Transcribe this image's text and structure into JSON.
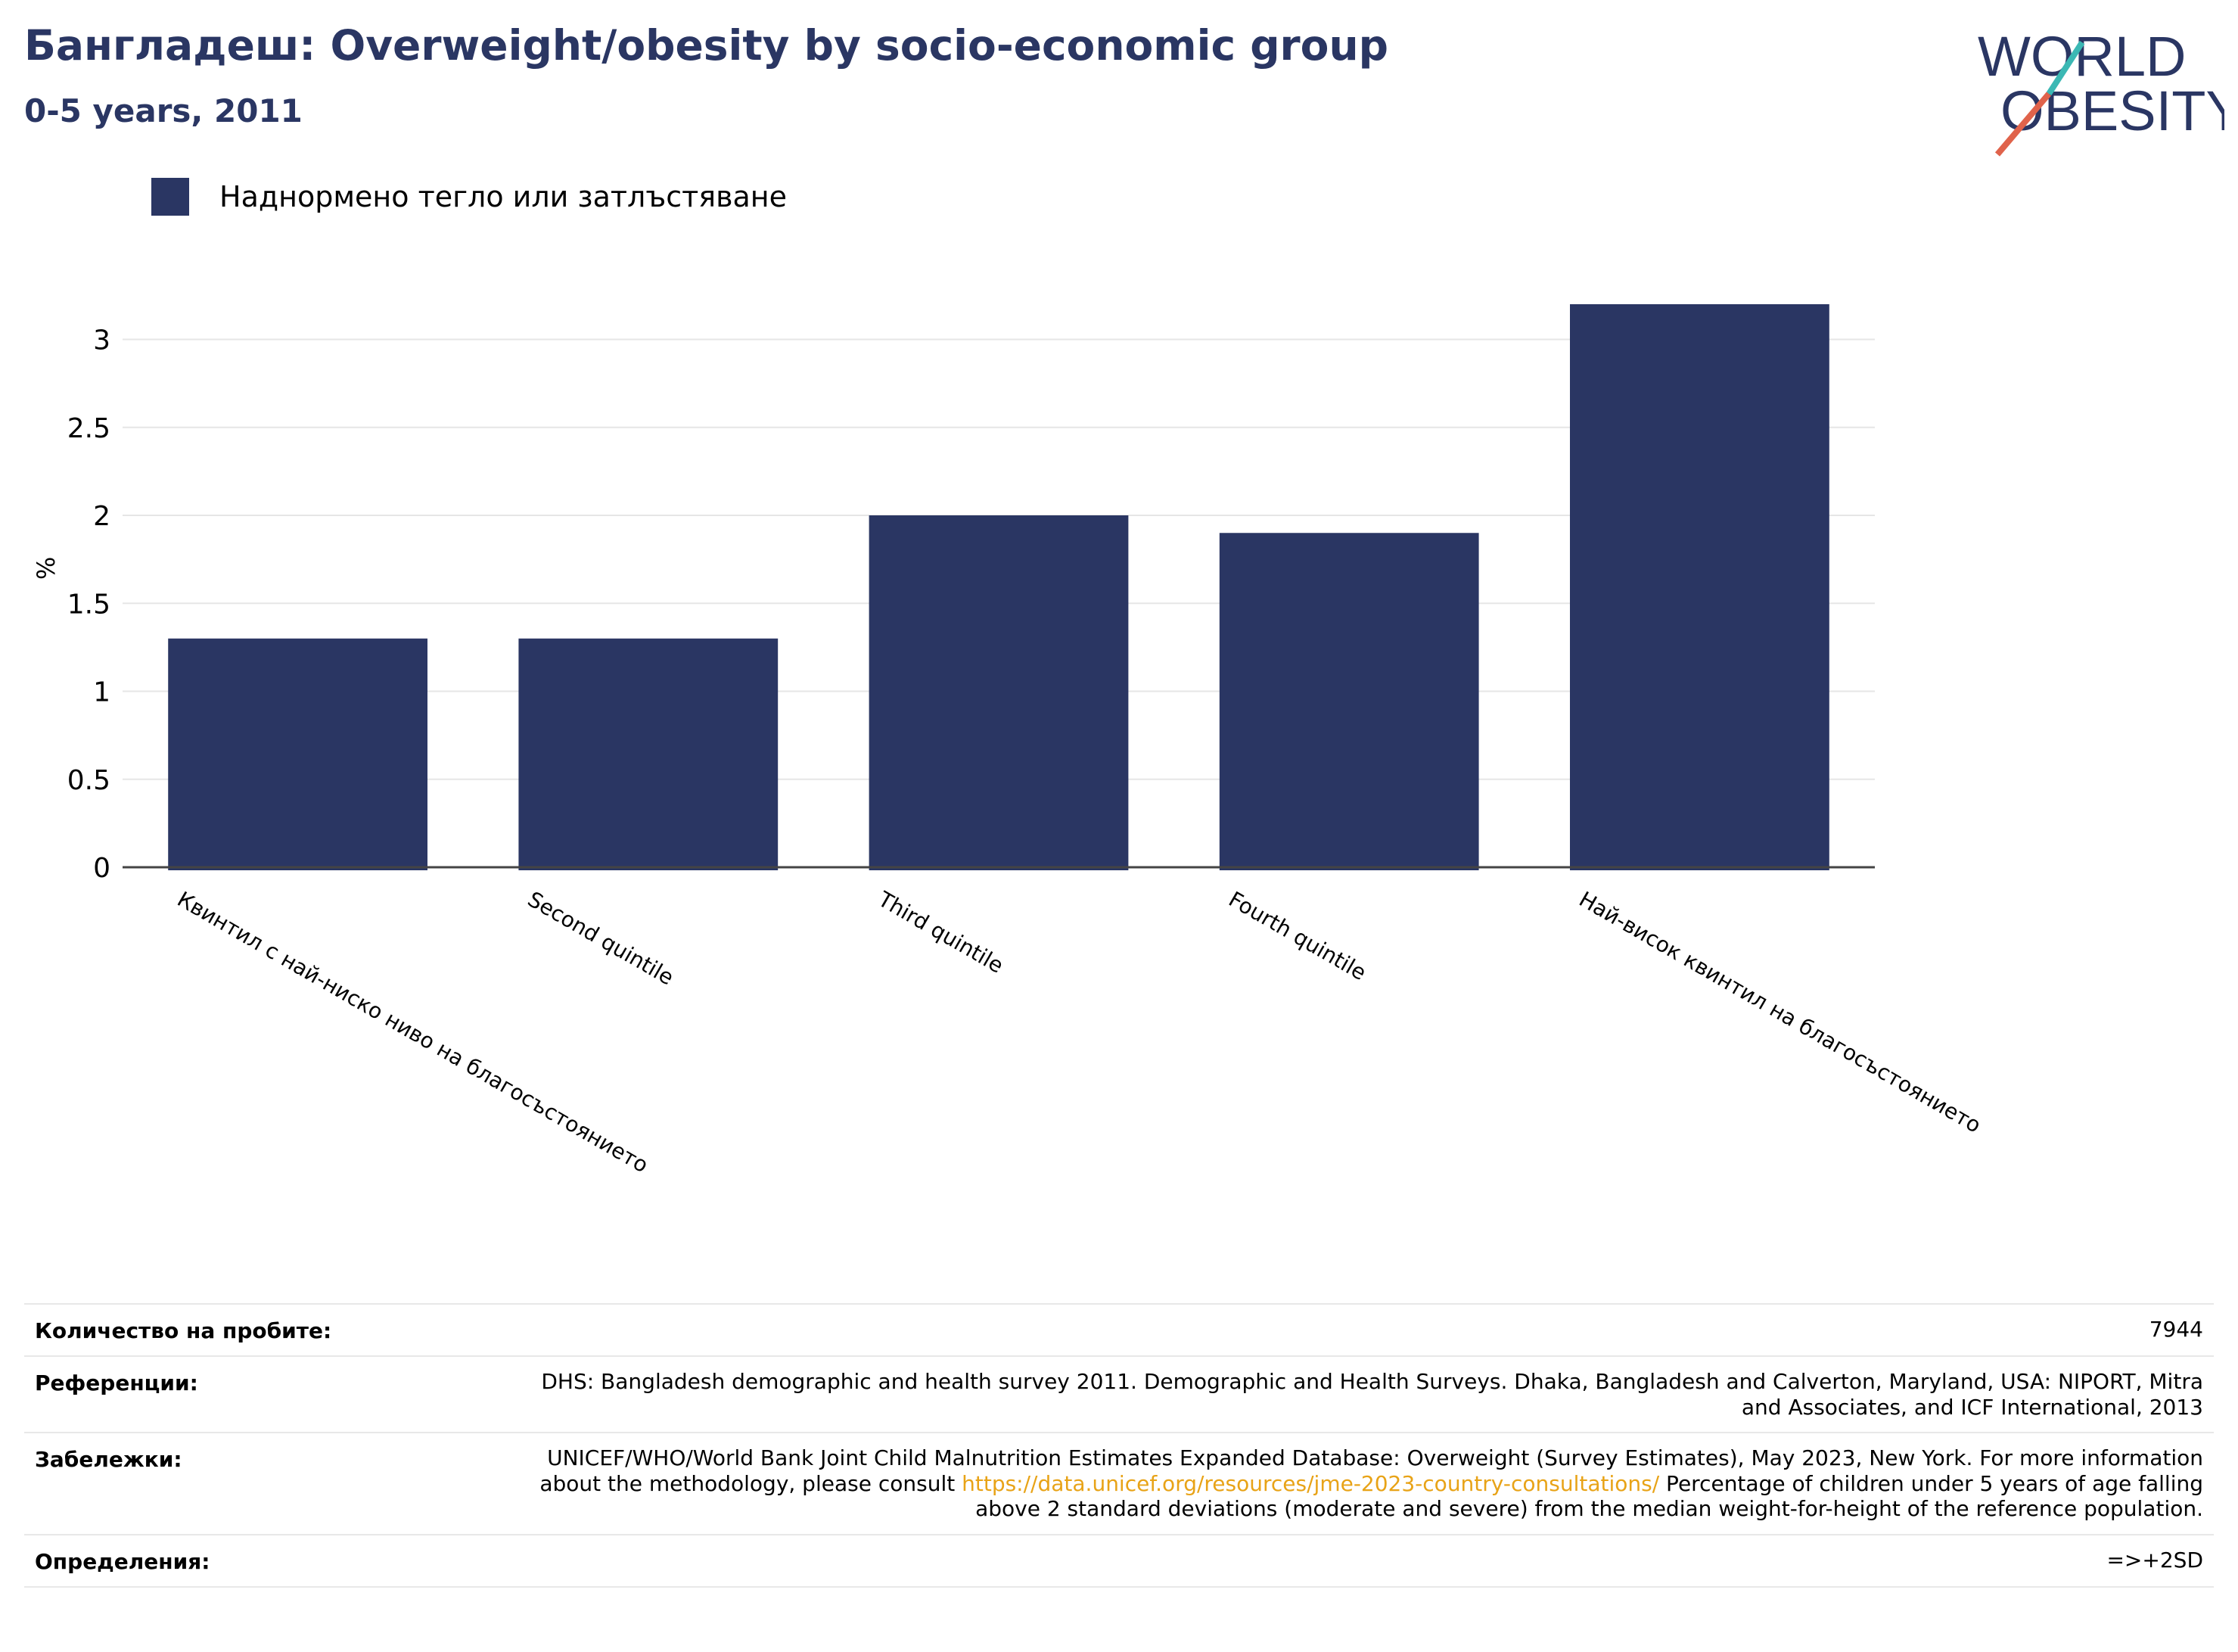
{
  "header": {
    "title": "Бангладеш: Overweight/obesity by socio-economic group",
    "subtitle": "0-5 years, 2011"
  },
  "logo": {
    "line1": "WORLD",
    "line2": "OBESITY",
    "colors": {
      "text": "#2a3663",
      "slash_top": "#3bb8b4",
      "slash_bottom": "#e0634b"
    }
  },
  "legend": {
    "label": "Наднормено тегло или затлъстяване"
  },
  "colors": {
    "bar": "#2a3663",
    "grid": "#e6e6e6",
    "axis": "#444444",
    "link": "#e8a317"
  },
  "chart_data": {
    "type": "bar",
    "title": "Бангладеш: Overweight/obesity by socio-economic group",
    "subtitle": "0-5 years, 2011",
    "ylabel": "%",
    "xlabel": "",
    "categories": [
      "Квинтил с най-ниско ниво на благосъстоянието",
      "Second quintile",
      "Third quintile",
      "Fourth quintile",
      "Най-висок квинтил на благосъстоянието"
    ],
    "series": [
      {
        "name": "Наднормено тегло или затлъстяване",
        "values": [
          1.3,
          1.3,
          2.0,
          1.9,
          3.2
        ]
      }
    ],
    "ylim": [
      0,
      3.2
    ],
    "yticks": [
      0,
      0.5,
      1,
      1.5,
      2,
      2.5,
      3
    ],
    "ytick_labels": [
      "0",
      "0.5",
      "1",
      "1.5",
      "2",
      "2.5",
      "3"
    ],
    "grid": true,
    "legend_position": "top-left"
  },
  "meta": {
    "sample_label": "Количество на пробите:",
    "sample_value": "7944",
    "refs_label": "Референции:",
    "refs_value": "DHS: Bangladesh demographic and health survey 2011. Demographic and Health Surveys. Dhaka, Bangladesh and Calverton, Maryland, USA: NIPORT, Mitra and Associates, and ICF International, 2013",
    "notes_label": "Забележки:",
    "notes_before": "UNICEF/WHO/World Bank Joint Child Malnutrition Estimates Expanded Database: Overweight (Survey Estimates), May 2023, New York. For more information about the methodology, please consult ",
    "notes_link": "https://data.unicef.org/resources/jme-2023-country-consultations/",
    "notes_after": " Percentage of children under 5 years of age falling above 2 standard deviations (moderate and severe) from the median weight-for-height of the reference population.",
    "defs_label": "Определения:",
    "defs_value": "=>+2SD"
  }
}
